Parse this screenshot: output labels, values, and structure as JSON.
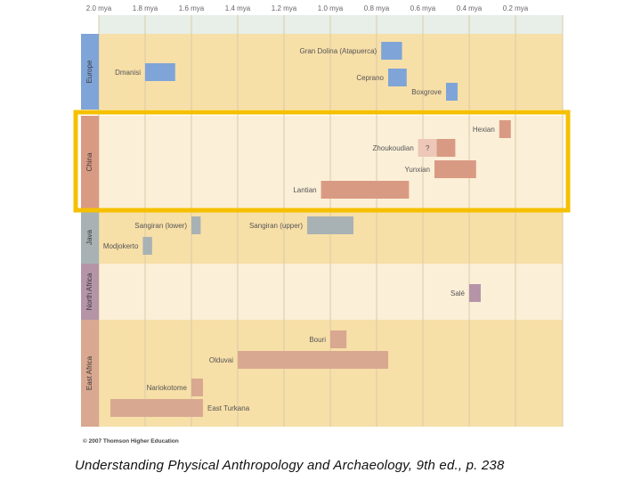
{
  "chart_data": {
    "type": "timeline",
    "title": "",
    "x_unit": "mya",
    "xlim": [
      2.0,
      0.0
    ],
    "ticks": [
      {
        "value": 2.0,
        "label": "2.0 mya"
      },
      {
        "value": 1.8,
        "label": "1.8 mya"
      },
      {
        "value": 1.6,
        "label": "1.6 mya"
      },
      {
        "value": 1.4,
        "label": "1.4 mya"
      },
      {
        "value": 1.2,
        "label": "1.2 mya"
      },
      {
        "value": 1.0,
        "label": "1.0 mya"
      },
      {
        "value": 0.8,
        "label": "0.8 mya"
      },
      {
        "value": 0.6,
        "label": "0.6 mya"
      },
      {
        "value": 0.4,
        "label": "0.4 mya"
      },
      {
        "value": 0.2,
        "label": "0.2 mya"
      }
    ],
    "regions": [
      {
        "name": "Europe",
        "color": "#7fa4d8",
        "band_color": "#f7dfa8",
        "highlighted": false,
        "sites": [
          {
            "name": "Dmanisi",
            "start": 1.8,
            "end": 1.67,
            "label_side": "left"
          },
          {
            "name": "Gran Dolina (Atapuerca)",
            "start": 0.78,
            "end": 0.69,
            "label_side": "left"
          },
          {
            "name": "Ceprano",
            "start": 0.75,
            "end": 0.67,
            "label_side": "left"
          },
          {
            "name": "Boxgrove",
            "start": 0.5,
            "end": 0.45,
            "label_side": "left"
          }
        ]
      },
      {
        "name": "China",
        "color": "#d99a84",
        "band_color": "#fcefd8",
        "highlighted": true,
        "sites": [
          {
            "name": "Hexian",
            "start": 0.27,
            "end": 0.22,
            "label_side": "left"
          },
          {
            "name": "Zhoukoudian",
            "start": 0.62,
            "end": 0.46,
            "label_side": "left",
            "uncertain_start": 0.62,
            "uncertain_end": 0.54,
            "uncertain_label": "?"
          },
          {
            "name": "Yunxian",
            "start": 0.55,
            "end": 0.37,
            "label_side": "left"
          },
          {
            "name": "Lantian",
            "start": 1.04,
            "end": 0.66,
            "label_side": "left"
          }
        ]
      },
      {
        "name": "Java",
        "color": "#a8b2b4",
        "band_color": "#f7dfa8",
        "highlighted": false,
        "sites": [
          {
            "name": "Sangiran (lower)",
            "start": 1.6,
            "end": 1.56,
            "label_side": "left"
          },
          {
            "name": "Sangiran (upper)",
            "start": 1.1,
            "end": 0.9,
            "label_side": "left"
          },
          {
            "name": "Modjokerto",
            "start": 1.81,
            "end": 1.77,
            "label_side": "left"
          }
        ]
      },
      {
        "name": "North Africa",
        "color": "#b594a8",
        "band_color": "#fcefd8",
        "highlighted": false,
        "sites": [
          {
            "name": "Salé",
            "start": 0.4,
            "end": 0.35,
            "label_side": "left"
          }
        ]
      },
      {
        "name": "East Africa",
        "color": "#d9a890",
        "band_color": "#f7dfa8",
        "highlighted": false,
        "sites": [
          {
            "name": "Bouri",
            "start": 1.0,
            "end": 0.93,
            "label_side": "left"
          },
          {
            "name": "Olduvai",
            "start": 1.4,
            "end": 0.75,
            "label_side": "left"
          },
          {
            "name": "Nariokotome",
            "start": 1.6,
            "end": 1.55,
            "label_side": "left"
          },
          {
            "name": "East Turkana",
            "start": 1.95,
            "end": 1.55,
            "label_side": "right"
          }
        ]
      }
    ],
    "highlight_box_color": "#f5c000"
  },
  "copyright": "© 2007 Thomson Higher Education",
  "caption": "Understanding Physical Anthropology and Archaeology, 9th ed., p. 238"
}
